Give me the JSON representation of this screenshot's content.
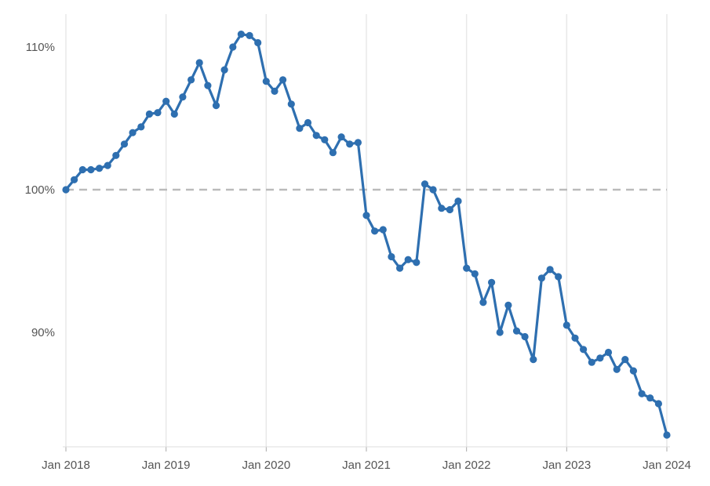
{
  "chart_data": {
    "type": "line",
    "title": "",
    "xlabel": "",
    "ylabel": "",
    "x_tick_labels": [
      "Jan 2018",
      "Jan 2019",
      "Jan 2020",
      "Jan 2021",
      "Jan 2022",
      "Jan 2023",
      "Jan 2024"
    ],
    "x_range": [
      "2018-01",
      "2024-01"
    ],
    "y_tick_labels": [
      "90%",
      "100%",
      "110%"
    ],
    "y_ticks": [
      90,
      100,
      110
    ],
    "ylim": [
      82,
      112.5
    ],
    "y_unit": "%",
    "grid": "vertical",
    "reference_line": {
      "value": 100,
      "style": "dashed",
      "color": "#bbbbbb"
    },
    "series_color": "#2e6fb0",
    "series": [
      {
        "x": [
          "2018-01",
          "2018-02",
          "2018-03",
          "2018-04",
          "2018-05",
          "2018-06",
          "2018-07",
          "2018-08",
          "2018-09",
          "2018-10",
          "2018-11",
          "2018-12",
          "2019-01",
          "2019-02",
          "2019-03",
          "2019-04",
          "2019-05",
          "2019-06",
          "2019-07",
          "2019-08",
          "2019-09",
          "2019-10",
          "2019-11",
          "2019-12",
          "2020-01",
          "2020-02",
          "2020-03",
          "2020-04",
          "2020-05",
          "2020-06",
          "2020-07",
          "2020-08",
          "2020-09",
          "2020-10",
          "2020-11",
          "2020-12",
          "2021-01",
          "2021-02",
          "2021-03",
          "2021-04",
          "2021-05",
          "2021-06",
          "2021-07",
          "2021-08",
          "2021-09",
          "2021-10",
          "2021-11",
          "2021-12",
          "2022-01",
          "2022-02",
          "2022-03",
          "2022-04",
          "2022-05",
          "2022-06",
          "2022-07",
          "2022-08",
          "2022-09",
          "2022-10",
          "2022-11",
          "2022-12",
          "2023-01",
          "2023-02",
          "2023-03",
          "2023-04",
          "2023-05",
          "2023-06",
          "2023-07",
          "2023-08",
          "2023-09",
          "2023-10",
          "2023-11",
          "2023-12",
          "2024-01"
        ],
        "values": [
          100.0,
          100.7,
          101.4,
          101.4,
          101.5,
          101.7,
          102.4,
          103.2,
          104.0,
          104.4,
          105.3,
          105.4,
          106.2,
          105.3,
          106.5,
          107.7,
          108.9,
          107.3,
          105.9,
          108.4,
          110.0,
          110.9,
          110.8,
          110.3,
          107.6,
          106.9,
          107.7,
          106.0,
          104.3,
          104.7,
          103.8,
          103.5,
          102.6,
          103.7,
          103.2,
          103.3,
          98.2,
          97.1,
          97.2,
          95.3,
          94.5,
          95.1,
          94.9,
          100.4,
          100.0,
          98.7,
          98.6,
          99.2,
          94.5,
          94.1,
          92.1,
          93.5,
          90.0,
          91.9,
          90.1,
          89.7,
          88.1,
          93.8,
          94.4,
          93.9,
          90.5,
          89.6,
          88.8,
          87.9,
          88.2,
          88.6,
          87.4,
          88.1,
          87.3,
          85.7,
          85.4,
          85.0,
          82.8
        ]
      }
    ]
  }
}
